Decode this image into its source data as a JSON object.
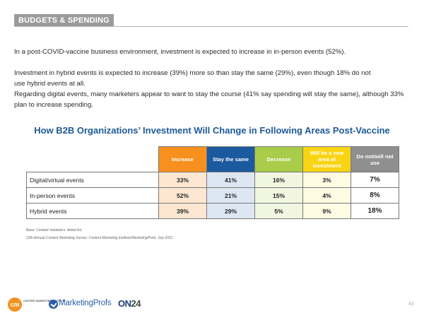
{
  "section": {
    "tag": "BUDGETS & SPENDING"
  },
  "paragraphs": [
    "In a post-COVID-vaccine business environment, investment is expected to increase in in-person events (52%).",
    "Investment in hybrid events is expected to increase (39%) more so than stay the same (29%), even though 18% do not use hybrid events at all.",
    "Regarding digital events, many marketers appear to want to stay the course (41% say spending will stay the same), although 33% plan to increase spending."
  ],
  "chart_data": {
    "type": "table",
    "title": "How B2B Organizations’ Investment Will Change in Following Areas Post-Vaccine",
    "columns": [
      {
        "label": "Increase",
        "header_color": "#f7901e",
        "cell_color": "#fde7d2"
      },
      {
        "label": "Stay the same",
        "header_color": "#1c5aa0",
        "cell_color": "#dde7f3"
      },
      {
        "label": "Decrease",
        "header_color": "#a9cc4a",
        "cell_color": "#f1f6e1"
      },
      {
        "label": "Will be a new area of investment",
        "header_color": "#f9d413",
        "cell_color": "#fefbe3"
      },
      {
        "label": "Do not/will not use",
        "header_color": "#8f8f8f",
        "cell_color": "#ffffff"
      }
    ],
    "rows": [
      {
        "label": "Digital/virtual events",
        "values": [
          "33%",
          "41%",
          "16%",
          "3%",
          "7%"
        ]
      },
      {
        "label": "In-person events",
        "values": [
          "52%",
          "21%",
          "15%",
          "4%",
          "8%"
        ]
      },
      {
        "label": "Hybrid events",
        "values": [
          "39%",
          "29%",
          "5%",
          "9%",
          "18%"
        ]
      }
    ]
  },
  "footnotes": [
    "Base: Content marketers. Aided list.",
    "12th Annual Content Marketing Survey: Content Marketing Institute/MarketingProfs, July 2021"
  ],
  "logos": {
    "cmi_mark": "cm",
    "cmi_text": "CONTENT MARKETING INSTITUTE",
    "marketingprofs": "MarketingProfs",
    "on24_a": "ON",
    "on24_b": "24"
  },
  "page_number": "43"
}
